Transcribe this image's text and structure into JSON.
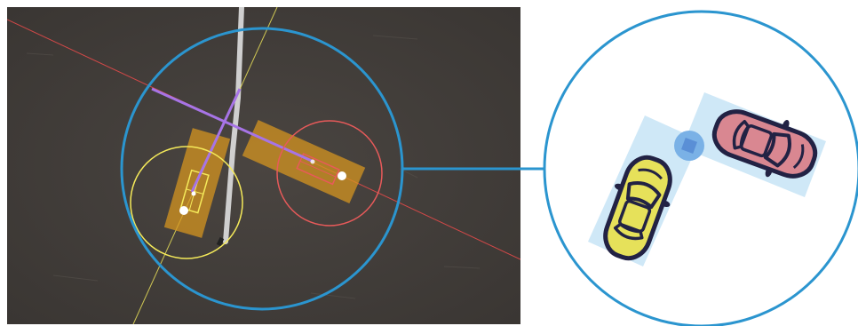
{
  "figure": {
    "left_panel": {
      "kind": "aerial-photo-detection-overlay",
      "background_color": "#46413d",
      "road_marking_color": "#c8c8c8",
      "zoom_circle_color": "#2b95cf",
      "detections": [
        {
          "id": "vehicle-yellow",
          "color": "#f5ea5a",
          "box_color": "#d9971e",
          "radius_circle": true,
          "trajectory_line_color": "#a774e6"
        },
        {
          "id": "vehicle-red",
          "color": "#e85a5a",
          "box_color": "#d9971e",
          "radius_circle": true
        }
      ]
    },
    "right_panel": {
      "kind": "schematic-zoom",
      "circle_color": "#2b95cf",
      "zone_color": "#cfe8f7",
      "contact_point_color": "#7ab1e6",
      "cars": [
        {
          "id": "car-yellow",
          "body_color": "#e6e15a",
          "outline_color": "#222244",
          "orientation": "up"
        },
        {
          "id": "car-red",
          "body_color": "#d98791",
          "outline_color": "#222244",
          "orientation": "right"
        }
      ]
    },
    "connector_color": "#2b95cf"
  }
}
